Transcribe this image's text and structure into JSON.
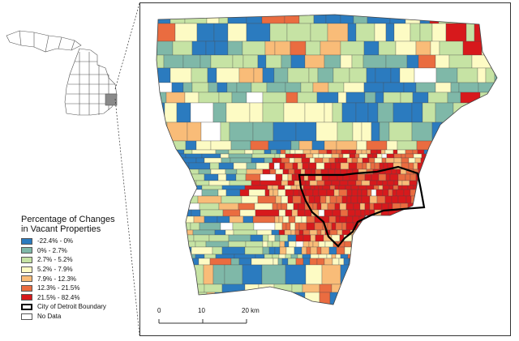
{
  "legend": {
    "title_line1": "Percentage of Changes",
    "title_line2": "in Vacant Properties",
    "classes": [
      {
        "label": "-22.4% - 0%",
        "color": "#2b7bbf"
      },
      {
        "label": "0% - 2.7%",
        "color": "#7fb8a8"
      },
      {
        "label": "2.7% - 5.2%",
        "color": "#c6e3a4"
      },
      {
        "label": "5.2% - 7.9%",
        "color": "#fdfbc4"
      },
      {
        "label": "7.9% - 12.3%",
        "color": "#f9bc78"
      },
      {
        "label": "12.3% - 21.5%",
        "color": "#ea6c40"
      },
      {
        "label": "21.5% - 82.4%",
        "color": "#d7191c"
      }
    ],
    "boundary_label": "City of Detroit Boundary",
    "nodata_label": "No Data"
  },
  "scale": {
    "ticks": [
      "0",
      "10",
      "20 km"
    ]
  }
}
